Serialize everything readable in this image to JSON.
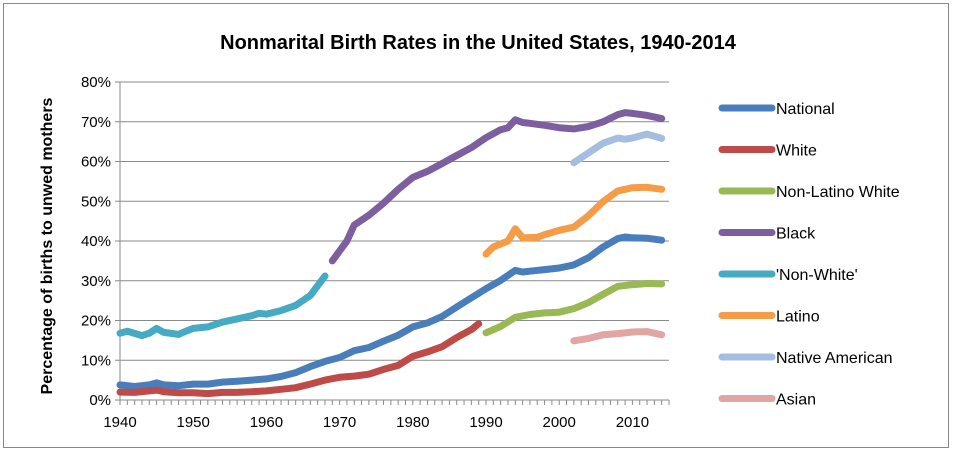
{
  "chart_data": {
    "type": "line",
    "title": "Nonmarital Birth Rates in the United States, 1940-2014",
    "xlabel": "",
    "ylabel": "Percentage of births to unwed mothers",
    "xlim": [
      1940,
      2015
    ],
    "ylim": [
      0,
      80
    ],
    "x_ticks": [
      "1940",
      "1950",
      "1960",
      "1970",
      "1980",
      "1990",
      "2000",
      "2010"
    ],
    "y_ticks": [
      "0%",
      "10%",
      "20%",
      "30%",
      "40%",
      "50%",
      "60%",
      "70%",
      "80%"
    ],
    "grid": "horizontal",
    "legend_position": "right",
    "series": [
      {
        "name": "National",
        "color": "#4a7ebb",
        "points": [
          [
            1940,
            3.8
          ],
          [
            1942,
            3.4
          ],
          [
            1944,
            3.8
          ],
          [
            1945,
            4.3
          ],
          [
            1946,
            3.8
          ],
          [
            1948,
            3.6
          ],
          [
            1950,
            4.0
          ],
          [
            1952,
            4.0
          ],
          [
            1954,
            4.5
          ],
          [
            1956,
            4.7
          ],
          [
            1958,
            5.0
          ],
          [
            1960,
            5.3
          ],
          [
            1962,
            5.9
          ],
          [
            1964,
            6.9
          ],
          [
            1966,
            8.4
          ],
          [
            1968,
            9.7
          ],
          [
            1970,
            10.7
          ],
          [
            1972,
            12.4
          ],
          [
            1974,
            13.2
          ],
          [
            1976,
            14.8
          ],
          [
            1978,
            16.3
          ],
          [
            1980,
            18.4
          ],
          [
            1982,
            19.4
          ],
          [
            1984,
            21.0
          ],
          [
            1986,
            23.4
          ],
          [
            1988,
            25.7
          ],
          [
            1990,
            28.0
          ],
          [
            1992,
            30.1
          ],
          [
            1994,
            32.6
          ],
          [
            1995,
            32.2
          ],
          [
            1996,
            32.4
          ],
          [
            1998,
            32.8
          ],
          [
            2000,
            33.2
          ],
          [
            2002,
            34.0
          ],
          [
            2004,
            35.8
          ],
          [
            2006,
            38.5
          ],
          [
            2008,
            40.6
          ],
          [
            2009,
            41.0
          ],
          [
            2010,
            40.8
          ],
          [
            2012,
            40.7
          ],
          [
            2014,
            40.2
          ]
        ]
      },
      {
        "name": "White",
        "color": "#be4b48",
        "points": [
          [
            1940,
            2.0
          ],
          [
            1942,
            1.9
          ],
          [
            1944,
            2.3
          ],
          [
            1945,
            2.5
          ],
          [
            1946,
            2.1
          ],
          [
            1948,
            1.8
          ],
          [
            1950,
            1.8
          ],
          [
            1952,
            1.6
          ],
          [
            1954,
            1.9
          ],
          [
            1956,
            1.9
          ],
          [
            1958,
            2.1
          ],
          [
            1960,
            2.3
          ],
          [
            1962,
            2.7
          ],
          [
            1964,
            3.1
          ],
          [
            1966,
            4.0
          ],
          [
            1968,
            5.0
          ],
          [
            1970,
            5.7
          ],
          [
            1972,
            6.0
          ],
          [
            1974,
            6.5
          ],
          [
            1976,
            7.7
          ],
          [
            1978,
            8.7
          ],
          [
            1980,
            11.0
          ],
          [
            1982,
            12.1
          ],
          [
            1984,
            13.4
          ],
          [
            1986,
            15.7
          ],
          [
            1988,
            17.7
          ],
          [
            1989,
            19.2
          ]
        ]
      },
      {
        "name": "Non-Latino White",
        "color": "#98b954",
        "points": [
          [
            1990,
            16.9
          ],
          [
            1992,
            18.5
          ],
          [
            1994,
            20.8
          ],
          [
            1996,
            21.5
          ],
          [
            1998,
            21.9
          ],
          [
            2000,
            22.1
          ],
          [
            2002,
            23.0
          ],
          [
            2004,
            24.5
          ],
          [
            2006,
            26.6
          ],
          [
            2008,
            28.6
          ],
          [
            2010,
            29.0
          ],
          [
            2012,
            29.3
          ],
          [
            2014,
            29.2
          ]
        ]
      },
      {
        "name": "Black",
        "color": "#7d5fa0",
        "points": [
          [
            1969,
            35.0
          ],
          [
            1971,
            40.0
          ],
          [
            1972,
            44.0
          ],
          [
            1974,
            46.5
          ],
          [
            1976,
            49.5
          ],
          [
            1978,
            53.0
          ],
          [
            1980,
            56.0
          ],
          [
            1982,
            57.5
          ],
          [
            1984,
            59.5
          ],
          [
            1986,
            61.5
          ],
          [
            1988,
            63.5
          ],
          [
            1990,
            66.0
          ],
          [
            1992,
            68.0
          ],
          [
            1993,
            68.5
          ],
          [
            1994,
            70.5
          ],
          [
            1995,
            69.8
          ],
          [
            1996,
            69.6
          ],
          [
            1998,
            69.1
          ],
          [
            2000,
            68.5
          ],
          [
            2002,
            68.2
          ],
          [
            2004,
            68.8
          ],
          [
            2006,
            70.0
          ],
          [
            2008,
            71.8
          ],
          [
            2009,
            72.3
          ],
          [
            2010,
            72.1
          ],
          [
            2012,
            71.6
          ],
          [
            2014,
            70.8
          ]
        ]
      },
      {
        "name": "'Non-White'",
        "color": "#46aac5",
        "points": [
          [
            1940,
            16.8
          ],
          [
            1941,
            17.3
          ],
          [
            1943,
            16.2
          ],
          [
            1944,
            16.8
          ],
          [
            1945,
            18.0
          ],
          [
            1946,
            17.0
          ],
          [
            1948,
            16.5
          ],
          [
            1949,
            17.3
          ],
          [
            1950,
            18.0
          ],
          [
            1952,
            18.4
          ],
          [
            1954,
            19.6
          ],
          [
            1956,
            20.4
          ],
          [
            1958,
            21.2
          ],
          [
            1959,
            21.8
          ],
          [
            1960,
            21.6
          ],
          [
            1962,
            22.5
          ],
          [
            1964,
            23.8
          ],
          [
            1966,
            26.3
          ],
          [
            1968,
            31.2
          ]
        ]
      },
      {
        "name": "Latino",
        "color": "#f59c48",
        "points": [
          [
            1990,
            36.7
          ],
          [
            1991,
            38.5
          ],
          [
            1993,
            40.0
          ],
          [
            1994,
            43.1
          ],
          [
            1995,
            40.8
          ],
          [
            1997,
            40.9
          ],
          [
            1998,
            41.6
          ],
          [
            2000,
            42.7
          ],
          [
            2002,
            43.5
          ],
          [
            2004,
            46.4
          ],
          [
            2006,
            49.9
          ],
          [
            2008,
            52.6
          ],
          [
            2010,
            53.4
          ],
          [
            2012,
            53.5
          ],
          [
            2014,
            53.0
          ]
        ]
      },
      {
        "name": "Native American",
        "color": "#a5bde1",
        "points": [
          [
            2002,
            59.7
          ],
          [
            2004,
            62.2
          ],
          [
            2006,
            64.6
          ],
          [
            2008,
            65.9
          ],
          [
            2009,
            65.6
          ],
          [
            2010,
            65.9
          ],
          [
            2012,
            66.9
          ],
          [
            2014,
            65.8
          ]
        ]
      },
      {
        "name": "Asian",
        "color": "#e1a5a4",
        "points": [
          [
            2002,
            14.9
          ],
          [
            2004,
            15.5
          ],
          [
            2006,
            16.4
          ],
          [
            2008,
            16.7
          ],
          [
            2010,
            17.1
          ],
          [
            2012,
            17.2
          ],
          [
            2014,
            16.4
          ]
        ]
      }
    ]
  }
}
